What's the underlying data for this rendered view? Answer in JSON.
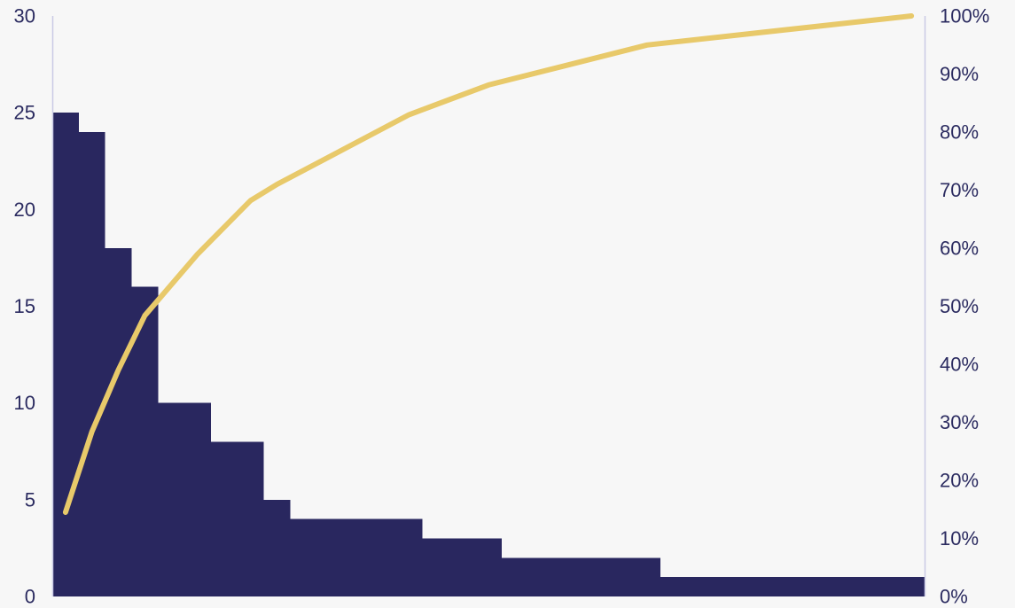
{
  "chart_data": {
    "type": "bar",
    "bars": [
      {
        "start": 0,
        "end": 1,
        "value": 25
      },
      {
        "start": 1,
        "end": 2,
        "value": 24
      },
      {
        "start": 2,
        "end": 3,
        "value": 18
      },
      {
        "start": 3,
        "end": 4,
        "value": 16
      },
      {
        "start": 4,
        "end": 6,
        "value": 10
      },
      {
        "start": 6,
        "end": 8,
        "value": 8
      },
      {
        "start": 8,
        "end": 9,
        "value": 5
      },
      {
        "start": 9,
        "end": 14,
        "value": 4
      },
      {
        "start": 14,
        "end": 17,
        "value": 3
      },
      {
        "start": 17,
        "end": 23,
        "value": 2
      },
      {
        "start": 23,
        "end": 33,
        "value": 1
      }
    ],
    "cumulative_line": {
      "x": [
        0.5,
        1.5,
        2.5,
        3.5,
        5.5,
        7.5,
        8.5,
        13.5,
        16.5,
        22.5,
        32.5
      ],
      "y": [
        14.5,
        28.4,
        39.0,
        48.4,
        59.0,
        68.2,
        71.0,
        83.0,
        88.1,
        95.0,
        100
      ]
    },
    "xlim": [
      0,
      33
    ],
    "ylim_left": [
      0,
      30
    ],
    "ylim_right": [
      0,
      100
    ],
    "left_ticks": [
      "0",
      "5",
      "10",
      "15",
      "20",
      "25",
      "30"
    ],
    "right_ticks": [
      "0%",
      "10%",
      "20%",
      "30%",
      "40%",
      "50%",
      "60%",
      "70%",
      "80%",
      "90%",
      "100%"
    ],
    "colors": {
      "bars": "#29275f",
      "line": "#e8c96a",
      "axis": "#c9c9e6",
      "text": "#2b2b60",
      "background": "#f7f7f7"
    }
  }
}
